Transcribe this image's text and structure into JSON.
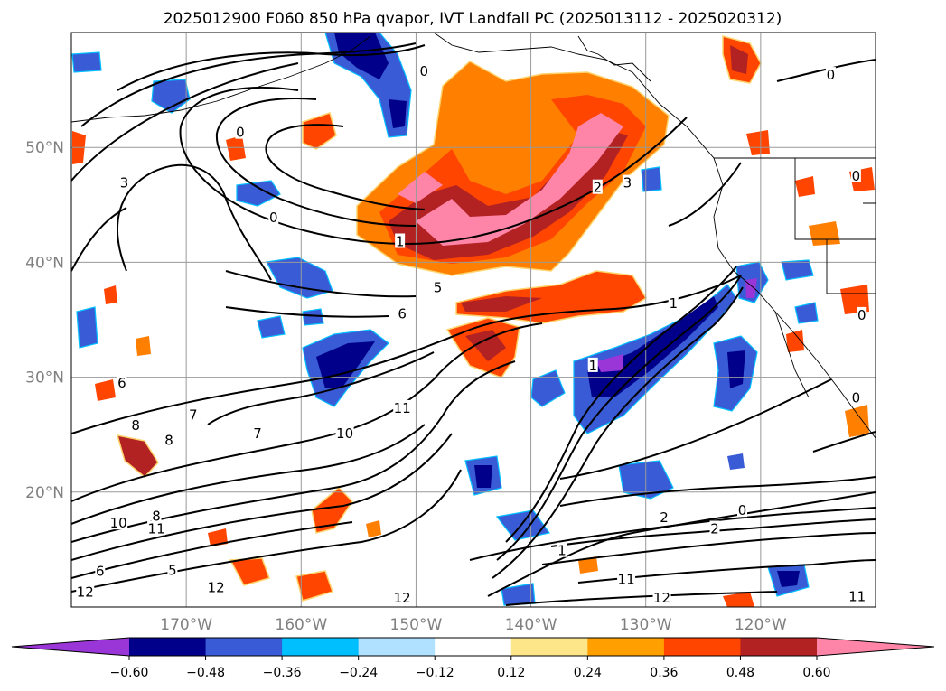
{
  "figure": {
    "title": "2025012900 F060 850 hPa qvapor, IVT Landfall PC (2025013112 - 2025020312)"
  },
  "map": {
    "projection": "PlateCarree",
    "lon_range": [
      -180,
      -110
    ],
    "lat_range": [
      10,
      60
    ],
    "gridlines": true,
    "lat_ticks": [
      {
        "value": 20,
        "label": "20°N"
      },
      {
        "value": 30,
        "label": "30°N"
      },
      {
        "value": 40,
        "label": "40°N"
      },
      {
        "value": 50,
        "label": "50°N"
      }
    ],
    "lon_ticks": [
      {
        "value": -170,
        "label": "170°W"
      },
      {
        "value": -160,
        "label": "160°W"
      },
      {
        "value": -150,
        "label": "150°W"
      },
      {
        "value": -140,
        "label": "140°W"
      },
      {
        "value": -130,
        "label": "130°W"
      },
      {
        "value": -120,
        "label": "120°W"
      }
    ],
    "contour_labels": [
      {
        "text": "0",
        "lon": -165.3,
        "lat": 51.3
      },
      {
        "text": "0",
        "lon": -149.3,
        "lat": 56.6
      },
      {
        "text": "0",
        "lon": -162.4,
        "lat": 43.9
      },
      {
        "text": "0",
        "lon": -113.9,
        "lat": 56.3
      },
      {
        "text": "0",
        "lon": -111.7,
        "lat": 47.5
      },
      {
        "text": "0",
        "lon": -111.2,
        "lat": 35.4
      },
      {
        "text": "0",
        "lon": -111.7,
        "lat": 28.2
      },
      {
        "text": "0",
        "lon": -121.6,
        "lat": 18.4
      },
      {
        "text": "1",
        "lon": -151.4,
        "lat": 41.8
      },
      {
        "text": "1",
        "lon": -134.6,
        "lat": 31.0
      },
      {
        "text": "1",
        "lon": -127.6,
        "lat": 36.4
      },
      {
        "text": "1",
        "lon": -137.3,
        "lat": 14.9
      },
      {
        "text": "2",
        "lon": -134.2,
        "lat": 46.5
      },
      {
        "text": "2",
        "lon": -128.4,
        "lat": 17.8
      },
      {
        "text": "2",
        "lon": -124.0,
        "lat": 16.8
      },
      {
        "text": "3",
        "lon": -131.6,
        "lat": 46.9
      },
      {
        "text": "3",
        "lon": -175.4,
        "lat": 46.9
      },
      {
        "text": "5",
        "lon": -148.1,
        "lat": 37.8
      },
      {
        "text": "5",
        "lon": -171.2,
        "lat": 13.2
      },
      {
        "text": "6",
        "lon": -151.2,
        "lat": 35.5
      },
      {
        "text": "6",
        "lon": -175.6,
        "lat": 29.5
      },
      {
        "text": "6",
        "lon": -177.5,
        "lat": 13.1
      },
      {
        "text": "7",
        "lon": -163.8,
        "lat": 25.1
      },
      {
        "text": "7",
        "lon": -169.4,
        "lat": 26.7
      },
      {
        "text": "8",
        "lon": -172.6,
        "lat": 17.9
      },
      {
        "text": "8",
        "lon": -174.4,
        "lat": 25.8
      },
      {
        "text": "8",
        "lon": -171.5,
        "lat": 24.5
      },
      {
        "text": "10",
        "lon": -156.2,
        "lat": 25.1
      },
      {
        "text": "10",
        "lon": -175.9,
        "lat": 17.3
      },
      {
        "text": "11",
        "lon": -151.2,
        "lat": 27.3
      },
      {
        "text": "11",
        "lon": -172.6,
        "lat": 16.8
      },
      {
        "text": "11",
        "lon": -131.7,
        "lat": 12.4
      },
      {
        "text": "11",
        "lon": -111.6,
        "lat": 10.9
      },
      {
        "text": "12",
        "lon": -167.4,
        "lat": 11.7
      },
      {
        "text": "12",
        "lon": -178.8,
        "lat": 11.3
      },
      {
        "text": "12",
        "lon": -128.6,
        "lat": 10.8
      },
      {
        "text": "12",
        "lon": -151.2,
        "lat": 10.8
      }
    ]
  },
  "colorbar": {
    "colors": [
      "#9a35d8",
      "#00008b",
      "#3a5bd6",
      "#00bfff",
      "#b0e2ff",
      "#ffffff",
      "#fde68a",
      "#ffa000",
      "#ff4500",
      "#b22222",
      "#ff85a8",
      "#ff85a8"
    ],
    "tick_values": [
      -0.6,
      -0.48,
      -0.36,
      -0.24,
      -0.12,
      0.12,
      0.24,
      0.36,
      0.48,
      0.6
    ],
    "tick_labels": [
      "−0.60",
      "−0.48",
      "−0.36",
      "−0.24",
      "−0.12",
      "0.12",
      "0.24",
      "0.36",
      "0.48",
      "0.60"
    ],
    "extend": "both"
  }
}
